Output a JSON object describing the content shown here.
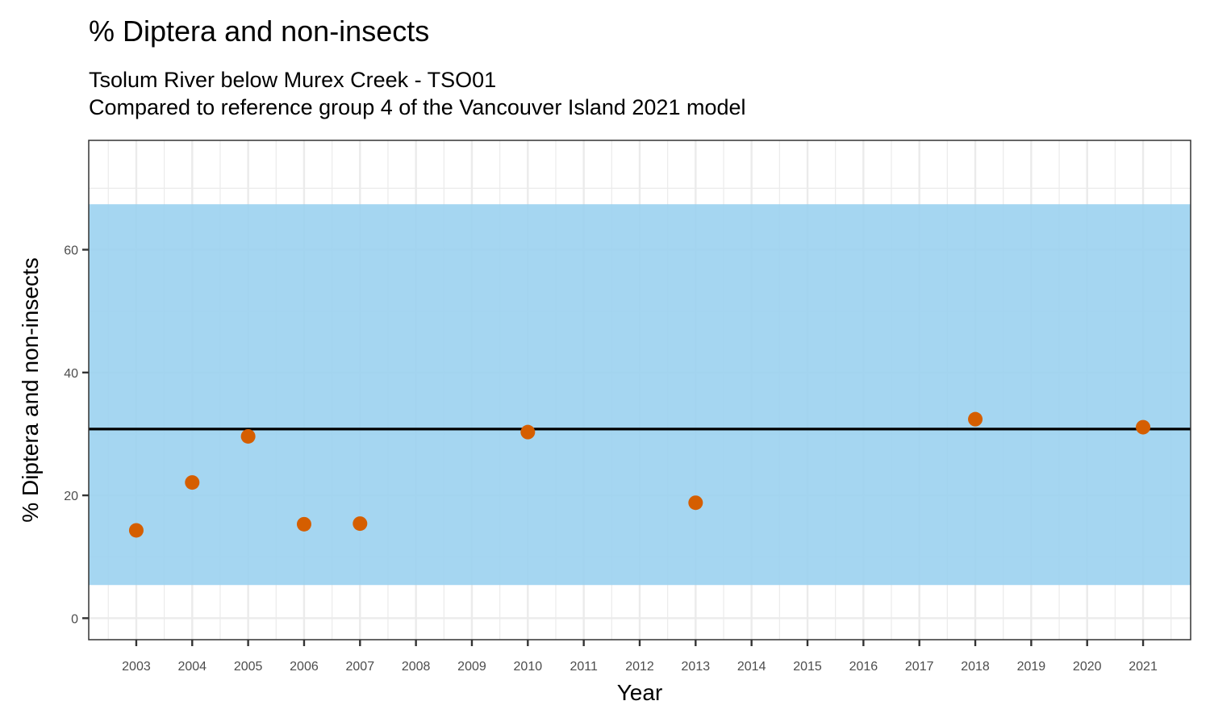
{
  "chart_data": {
    "type": "scatter",
    "title": "% Diptera and non-insects",
    "subtitle_lines": [
      "Tsolum River below Murex Creek - TSO01",
      "Compared to reference group 4 of the Vancouver Island 2021 model"
    ],
    "xlabel": "Year",
    "ylabel": "% Diptera and non-insects",
    "x_ticks": [
      "2003",
      "2004",
      "2005",
      "2006",
      "2007",
      "2008",
      "2009",
      "2010",
      "2011",
      "2012",
      "2013",
      "2014",
      "2015",
      "2016",
      "2017",
      "2018",
      "2019",
      "2020",
      "2021"
    ],
    "y_ticks": [
      0,
      20,
      40,
      60
    ],
    "ylim": [
      -3.5,
      77.8
    ],
    "xlim": [
      2002.15,
      2021.85
    ],
    "reference_band": {
      "lower": 5.4,
      "upper": 67.4,
      "color": "#9bd1ef"
    },
    "reference_line": {
      "value": 30.8,
      "color": "#000000"
    },
    "point_color": "#d55e00",
    "series": [
      {
        "name": "% Diptera and non-insects",
        "x": [
          2003,
          2004,
          2005,
          2006,
          2007,
          2010,
          2013,
          2018,
          2021
        ],
        "values": [
          14.3,
          22.1,
          29.6,
          15.3,
          15.4,
          30.3,
          18.8,
          32.4,
          31.1
        ]
      }
    ]
  }
}
